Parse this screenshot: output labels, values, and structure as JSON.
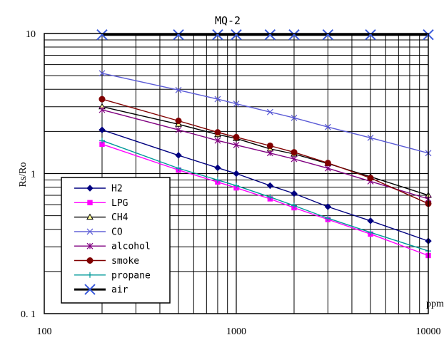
{
  "chart_data": {
    "type": "line",
    "title": "MQ-2",
    "xlabel": "ppm",
    "ylabel": "Rs/Ro",
    "xscale": "log",
    "yscale": "log",
    "xlim": [
      100,
      10000
    ],
    "ylim": [
      0.1,
      10
    ],
    "x_tick_labels": [
      "100",
      "1000",
      "10000"
    ],
    "y_tick_labels": [
      "0. 1",
      "1",
      "10"
    ],
    "grid": true,
    "legend_position": "lower-left",
    "series": [
      {
        "name": "H2",
        "color": "#000080",
        "marker": "diamond",
        "x": [
          200,
          500,
          800,
          1000,
          1500,
          2000,
          3000,
          5000,
          10000
        ],
        "y": [
          2.05,
          1.35,
          1.1,
          1.0,
          0.82,
          0.72,
          0.58,
          0.46,
          0.33
        ]
      },
      {
        "name": "LPG",
        "color": "#ff00ff",
        "marker": "square",
        "x": [
          200,
          500,
          800,
          1000,
          1500,
          2000,
          3000,
          5000,
          10000
        ],
        "y": [
          1.62,
          1.06,
          0.87,
          0.79,
          0.66,
          0.57,
          0.47,
          0.37,
          0.26
        ]
      },
      {
        "name": "CH4",
        "color": "#000000",
        "marker": "triangle",
        "fill": "#ffff99",
        "x": [
          200,
          500,
          800,
          1000,
          1500,
          2000,
          3000,
          5000,
          10000
        ],
        "y": [
          3.0,
          2.25,
          1.9,
          1.78,
          1.5,
          1.38,
          1.18,
          0.95,
          0.7
        ]
      },
      {
        "name": "CO",
        "color": "#5b5bd6",
        "marker": "x",
        "x": [
          200,
          500,
          800,
          1000,
          1500,
          2000,
          3000,
          5000,
          10000
        ],
        "y": [
          5.2,
          3.95,
          3.4,
          3.15,
          2.75,
          2.5,
          2.15,
          1.8,
          1.4
        ]
      },
      {
        "name": "alcohol",
        "color": "#800080",
        "marker": "star",
        "x": [
          200,
          500,
          800,
          1000,
          1500,
          2000,
          3000,
          5000,
          10000
        ],
        "y": [
          2.85,
          2.05,
          1.72,
          1.6,
          1.4,
          1.27,
          1.09,
          0.88,
          0.66
        ]
      },
      {
        "name": "smoke",
        "color": "#800000",
        "marker": "circle",
        "x": [
          200,
          500,
          800,
          1000,
          1500,
          2000,
          3000,
          5000,
          10000
        ],
        "y": [
          3.4,
          2.38,
          1.97,
          1.82,
          1.58,
          1.42,
          1.19,
          0.93,
          0.61
        ]
      },
      {
        "name": "propane",
        "color": "#009999",
        "marker": "plus",
        "x": [
          200,
          500,
          800,
          1000,
          1500,
          2000,
          3000,
          5000,
          10000
        ],
        "y": [
          1.72,
          1.09,
          0.9,
          0.82,
          0.68,
          0.59,
          0.48,
          0.38,
          0.28
        ]
      },
      {
        "name": "air",
        "color": "#000000",
        "marker": "x",
        "marker_color": "#3b5bdb",
        "x": [
          200,
          500,
          800,
          1000,
          1500,
          2000,
          3000,
          5000,
          10000
        ],
        "y": [
          9.8,
          9.8,
          9.8,
          9.8,
          9.8,
          9.8,
          9.8,
          9.8,
          9.8
        ]
      }
    ]
  }
}
